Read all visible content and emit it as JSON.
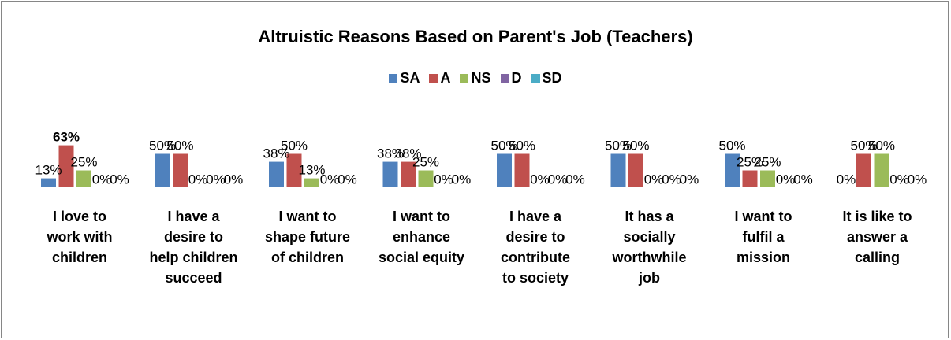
{
  "chart_data": {
    "type": "bar",
    "title": "Altruistic Reasons Based on Parent's Job (Teachers)",
    "xlabel": "",
    "ylabel": "",
    "ylim": [
      0,
      70
    ],
    "grid": false,
    "legend_position": "top",
    "categories": [
      [
        "I love to",
        "work with",
        "children"
      ],
      [
        "I have a",
        "desire to",
        "help children",
        "succeed"
      ],
      [
        "I want to",
        "shape future",
        "of children"
      ],
      [
        "I want to",
        "enhance",
        "social equity"
      ],
      [
        "I have a",
        "desire to",
        "contribute",
        "to society"
      ],
      [
        "It has a",
        "socially",
        "worthwhile",
        "job"
      ],
      [
        "I want to",
        "fulfil a",
        "mission"
      ],
      [
        "It is like to",
        "answer a",
        "calling"
      ]
    ],
    "series": [
      {
        "name": "SA",
        "color": "#4F81BD",
        "values": [
          13,
          50,
          38,
          38,
          50,
          50,
          50,
          0
        ],
        "labels": [
          "13%",
          "50%",
          "38%",
          "38%",
          "50%",
          "50%",
          "50%",
          "0%"
        ]
      },
      {
        "name": "A",
        "color": "#C0504D",
        "values": [
          63,
          50,
          50,
          38,
          50,
          50,
          25,
          50
        ],
        "labels": [
          "63%",
          "50%",
          "50%",
          "38%",
          "50%",
          "50%",
          "25%",
          "50%"
        ]
      },
      {
        "name": "NS",
        "color": "#9BBB59",
        "values": [
          25,
          0,
          13,
          25,
          0,
          0,
          25,
          50
        ],
        "labels": [
          "25%",
          "0%",
          "13%",
          "25%",
          "0%",
          "0%",
          "25%",
          "50%"
        ]
      },
      {
        "name": "D",
        "color": "#8064A2",
        "values": [
          0,
          0,
          0,
          0,
          0,
          0,
          0,
          0
        ],
        "labels": [
          "0%",
          "0%",
          "0%",
          "0%",
          "0%",
          "0%",
          "0%",
          "0%"
        ]
      },
      {
        "name": "SD",
        "color": "#4BACC6",
        "values": [
          0,
          0,
          0,
          0,
          0,
          0,
          0,
          0
        ],
        "labels": [
          "0%",
          "0%",
          "0%",
          "0%",
          "0%",
          "0%",
          "0%",
          "0%"
        ]
      }
    ]
  }
}
